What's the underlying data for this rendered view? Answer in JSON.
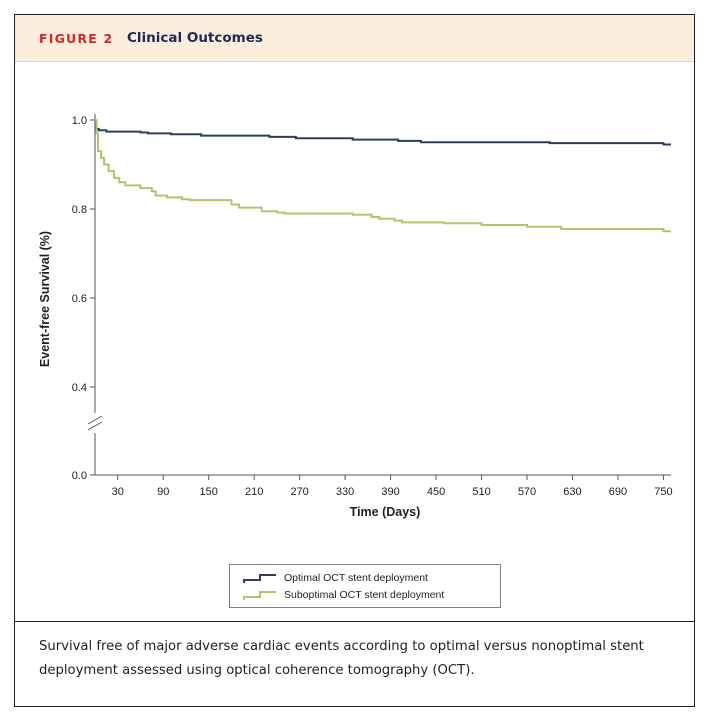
{
  "figure": {
    "label": "FIGURE 2",
    "title": "Clinical Outcomes",
    "caption": "Survival free of major adverse cardiac events according to optimal versus nonoptimal stent deployment assessed using optical coherence tomography (OCT)."
  },
  "colors": {
    "optimal": "#2f3d5e",
    "suboptimal": "#b3c46b",
    "header_bg": "#fbeedd",
    "label_red": "#d12630",
    "title_navy": "#1d2a55"
  },
  "chart_data": {
    "type": "line",
    "title": "",
    "xlabel": "Time (Days)",
    "ylabel": "Event-free Survival (%)",
    "xlim": [
      0,
      760
    ],
    "ylim": [
      0.0,
      1.0
    ],
    "y_axis_break": true,
    "x_ticks": [
      30,
      90,
      150,
      210,
      270,
      330,
      390,
      450,
      510,
      570,
      630,
      690,
      750
    ],
    "x_tick_labels": [
      "30",
      "90",
      "150",
      "210",
      "270",
      "330",
      "390",
      "450",
      "510",
      "570",
      "630",
      "690",
      "750"
    ],
    "y_ticks": [
      0.0,
      0.4,
      0.6,
      0.8,
      1.0
    ],
    "y_tick_labels": [
      "0.0",
      "0.4",
      "0.6",
      "0.8",
      "1.0"
    ],
    "legend_position": "bottom-center",
    "series": [
      {
        "name": "Optimal OCT stent deployment",
        "step": true,
        "x": [
          0,
          2,
          5,
          15,
          60,
          70,
          100,
          140,
          230,
          265,
          340,
          400,
          430,
          600,
          750,
          760
        ],
        "y": [
          1.0,
          0.98,
          0.977,
          0.974,
          0.972,
          0.97,
          0.968,
          0.965,
          0.962,
          0.959,
          0.956,
          0.953,
          0.95,
          0.948,
          0.945,
          0.945
        ]
      },
      {
        "name": "Suboptimal OCT stent deployment",
        "step": true,
        "x": [
          0,
          2,
          4,
          8,
          12,
          18,
          25,
          32,
          40,
          60,
          75,
          80,
          95,
          115,
          125,
          180,
          190,
          220,
          240,
          250,
          340,
          365,
          375,
          395,
          405,
          460,
          510,
          570,
          615,
          750,
          760
        ],
        "y": [
          1.0,
          0.97,
          0.93,
          0.915,
          0.9,
          0.885,
          0.87,
          0.86,
          0.853,
          0.847,
          0.84,
          0.83,
          0.826,
          0.822,
          0.82,
          0.81,
          0.803,
          0.795,
          0.792,
          0.79,
          0.787,
          0.782,
          0.778,
          0.774,
          0.77,
          0.768,
          0.764,
          0.76,
          0.755,
          0.75,
          0.75
        ]
      }
    ]
  }
}
